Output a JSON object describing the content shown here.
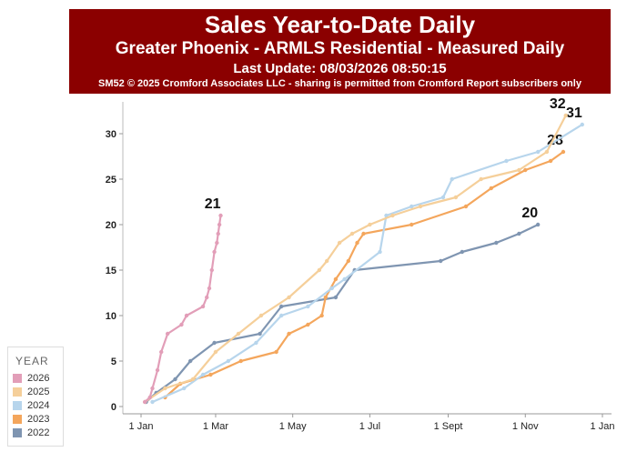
{
  "header": {
    "title": "Sales Year-to-Date Daily",
    "subtitle": "Greater Phoenix - ARMLS Residential - Measured Daily",
    "last_update": "Last Update: 08/03/2026 08:50:15",
    "credit": "SM52 © 2025 Cromford Associates LLC - sharing is permitted from Cromford Report subscribers only"
  },
  "legend": {
    "title": "YEAR",
    "items": [
      {
        "label": "2026",
        "color": "#e29eb8"
      },
      {
        "label": "2025",
        "color": "#f5cf9a"
      },
      {
        "label": "2024",
        "color": "#b7d5ec"
      },
      {
        "label": "2023",
        "color": "#f4a65c"
      },
      {
        "label": "2022",
        "color": "#7f95b1"
      }
    ]
  },
  "chart_data": {
    "type": "line",
    "title": "Sales Year-to-Date Daily",
    "xlabel": "",
    "ylabel": "",
    "x_unit": "day of year",
    "xlim": [
      1,
      366
    ],
    "ylim": [
      0,
      33
    ],
    "x_ticks": [
      {
        "label": "1 Jan",
        "day": 1
      },
      {
        "label": "1 Mar",
        "day": 60
      },
      {
        "label": "1 May",
        "day": 121
      },
      {
        "label": "1 Jul",
        "day": 182
      },
      {
        "label": "1 Sept",
        "day": 244
      },
      {
        "label": "1 Nov",
        "day": 305
      },
      {
        "label": "1 Jan",
        "day": 366
      }
    ],
    "y_ticks": [
      0,
      5,
      10,
      15,
      20,
      25,
      30
    ],
    "series": [
      {
        "name": "2022",
        "color": "#7f95b1",
        "end_label": "20",
        "points": [
          [
            5,
            0.5
          ],
          [
            13,
            1.5
          ],
          [
            28,
            3
          ],
          [
            40,
            5
          ],
          [
            59,
            7
          ],
          [
            95,
            8
          ],
          [
            112,
            11
          ],
          [
            155,
            12
          ],
          [
            170,
            15
          ],
          [
            238,
            16
          ],
          [
            255,
            17
          ],
          [
            282,
            18
          ],
          [
            300,
            19
          ],
          [
            315,
            20
          ]
        ]
      },
      {
        "name": "2023",
        "color": "#f4a65c",
        "end_label": "28",
        "points": [
          [
            20,
            1
          ],
          [
            32,
            2.5
          ],
          [
            56,
            3.5
          ],
          [
            80,
            5
          ],
          [
            108,
            6
          ],
          [
            118,
            8
          ],
          [
            133,
            9
          ],
          [
            144,
            10
          ],
          [
            147,
            12
          ],
          [
            155,
            14
          ],
          [
            165,
            16
          ],
          [
            172,
            18
          ],
          [
            177,
            19
          ],
          [
            215,
            20
          ],
          [
            258,
            22
          ],
          [
            278,
            24
          ],
          [
            305,
            26
          ],
          [
            325,
            27
          ],
          [
            335,
            28
          ]
        ]
      },
      {
        "name": "2024",
        "color": "#b7d5ec",
        "end_label": "31",
        "points": [
          [
            10,
            0.5
          ],
          [
            35,
            2
          ],
          [
            50,
            3.5
          ],
          [
            70,
            5
          ],
          [
            92,
            7
          ],
          [
            112,
            10
          ],
          [
            133,
            11
          ],
          [
            152,
            13
          ],
          [
            162,
            14
          ],
          [
            190,
            17
          ],
          [
            195,
            21
          ],
          [
            215,
            22
          ],
          [
            240,
            23
          ],
          [
            247,
            25
          ],
          [
            290,
            27
          ],
          [
            315,
            28
          ],
          [
            350,
            31
          ]
        ]
      },
      {
        "name": "2025",
        "color": "#f5cf9a",
        "end_label": "32",
        "points": [
          [
            4,
            0.5
          ],
          [
            20,
            2
          ],
          [
            42,
            3
          ],
          [
            60,
            6
          ],
          [
            78,
            8
          ],
          [
            96,
            10
          ],
          [
            118,
            12
          ],
          [
            142,
            15
          ],
          [
            148,
            16
          ],
          [
            158,
            18
          ],
          [
            168,
            19
          ],
          [
            182,
            20
          ],
          [
            200,
            21
          ],
          [
            222,
            22
          ],
          [
            250,
            23
          ],
          [
            270,
            25
          ],
          [
            300,
            26
          ],
          [
            322,
            28
          ],
          [
            337,
            32
          ]
        ]
      },
      {
        "name": "2026",
        "color": "#e29eb8",
        "end_label": "21",
        "points": [
          [
            4,
            0.5
          ],
          [
            8,
            1
          ],
          [
            10,
            2
          ],
          [
            14,
            4
          ],
          [
            17,
            6
          ],
          [
            22,
            8
          ],
          [
            33,
            9
          ],
          [
            37,
            10
          ],
          [
            50,
            11
          ],
          [
            53,
            12
          ],
          [
            55,
            13
          ],
          [
            57,
            15
          ],
          [
            59,
            17
          ],
          [
            61,
            18
          ],
          [
            62,
            19
          ],
          [
            63,
            20
          ],
          [
            64,
            21
          ]
        ]
      }
    ]
  }
}
